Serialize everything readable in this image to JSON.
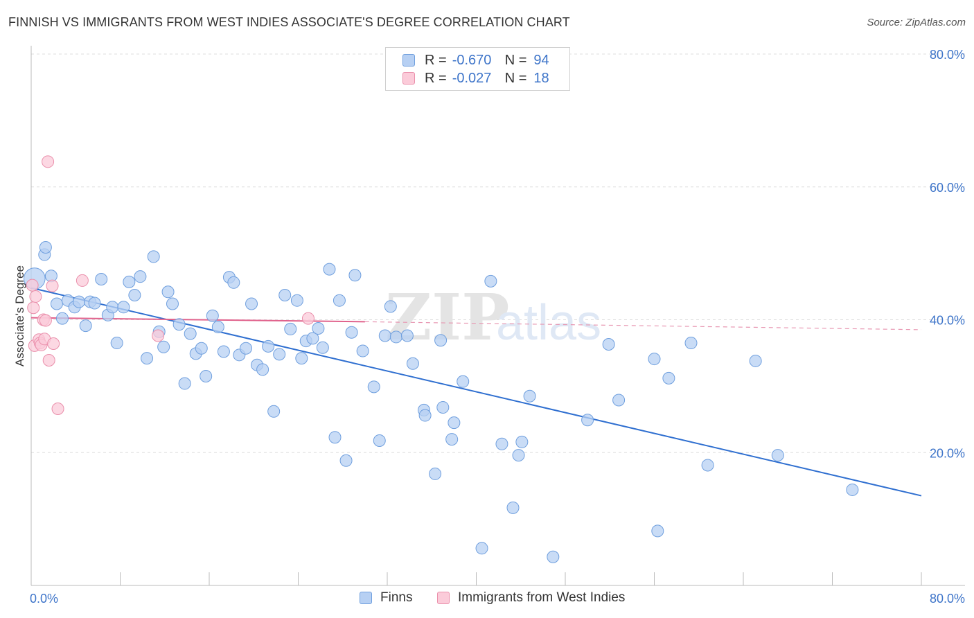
{
  "title": "FINNISH VS IMMIGRANTS FROM WEST INDIES ASSOCIATE'S DEGREE CORRELATION CHART",
  "source": "Source: ZipAtlas.com",
  "watermark": {
    "zip": "ZIP",
    "atlas": "atlas"
  },
  "legend_stats": [
    {
      "r_label": "R =",
      "r_value": "-0.670",
      "n_label": "N =",
      "n_value": "94",
      "color": "#6f9fde"
    },
    {
      "r_label": "R =",
      "r_value": "-0.027",
      "n_label": "N =",
      "n_value": "18",
      "color": "#ea8fab"
    }
  ],
  "chart_data": {
    "type": "scatter",
    "title": "FINNISH VS IMMIGRANTS FROM WEST INDIES ASSOCIATE'S DEGREE CORRELATION CHART",
    "xlabel": "",
    "ylabel": "Associate's Degree",
    "xlim": [
      0,
      80
    ],
    "ylim": [
      0,
      80
    ],
    "x_tick_labels": [
      "0.0%",
      "80.0%"
    ],
    "y_tick_labels": [
      "20.0%",
      "40.0%",
      "60.0%",
      "80.0%"
    ],
    "y_ticks": [
      20,
      40,
      60,
      80
    ],
    "grid": true,
    "legend_position": "bottom",
    "series": [
      {
        "name": "Finns",
        "color": "#6f9fde",
        "fill": "#b7d0f3",
        "trend": {
          "x": [
            0,
            80
          ],
          "y": [
            44.8,
            13.5
          ],
          "style": "solid"
        },
        "points": [
          [
            0.3,
            46.2,
            1.8
          ],
          [
            1.2,
            49.8,
            1.0
          ],
          [
            1.3,
            50.9,
            1.0
          ],
          [
            1.8,
            46.6,
            1.0
          ],
          [
            2.3,
            42.4,
            1.0
          ],
          [
            3.3,
            42.9,
            1.0
          ],
          [
            2.8,
            40.2,
            1.0
          ],
          [
            3.9,
            41.9,
            1.0
          ],
          [
            4.3,
            42.7,
            1.0
          ],
          [
            4.9,
            39.1,
            1.0
          ],
          [
            5.3,
            42.7,
            1.0
          ],
          [
            5.7,
            42.5,
            1.0
          ],
          [
            6.3,
            46.1,
            1.0
          ],
          [
            6.9,
            40.7,
            1.0
          ],
          [
            7.7,
            36.5,
            1.0
          ],
          [
            7.3,
            41.9,
            1.0
          ],
          [
            8.3,
            41.9,
            1.0
          ],
          [
            8.8,
            45.7,
            1.0
          ],
          [
            9.3,
            43.7,
            1.0
          ],
          [
            9.8,
            46.5,
            1.0
          ],
          [
            10.4,
            34.2,
            1.0
          ],
          [
            11.0,
            49.5,
            1.0
          ],
          [
            11.5,
            38.2,
            1.0
          ],
          [
            11.9,
            35.9,
            1.0
          ],
          [
            12.3,
            44.2,
            1.0
          ],
          [
            12.7,
            42.4,
            1.0
          ],
          [
            13.3,
            39.3,
            1.0
          ],
          [
            13.8,
            30.4,
            1.0
          ],
          [
            14.3,
            37.9,
            1.0
          ],
          [
            14.8,
            34.9,
            1.0
          ],
          [
            15.3,
            35.7,
            1.0
          ],
          [
            15.7,
            31.5,
            1.0
          ],
          [
            16.3,
            40.6,
            1.0
          ],
          [
            16.8,
            38.9,
            1.0
          ],
          [
            17.3,
            35.2,
            1.0
          ],
          [
            17.8,
            46.4,
            1.0
          ],
          [
            18.2,
            45.6,
            1.0
          ],
          [
            18.7,
            34.7,
            1.0
          ],
          [
            19.3,
            35.7,
            1.0
          ],
          [
            19.8,
            42.4,
            1.0
          ],
          [
            20.3,
            33.2,
            1.0
          ],
          [
            20.8,
            32.5,
            1.0
          ],
          [
            21.3,
            36.0,
            1.0
          ],
          [
            21.8,
            26.2,
            1.0
          ],
          [
            22.3,
            34.8,
            1.0
          ],
          [
            22.8,
            43.7,
            1.0
          ],
          [
            23.3,
            38.6,
            1.0
          ],
          [
            23.9,
            42.9,
            1.0
          ],
          [
            24.3,
            34.2,
            1.0
          ],
          [
            24.7,
            36.8,
            1.0
          ],
          [
            25.3,
            37.2,
            1.0
          ],
          [
            25.8,
            38.7,
            1.0
          ],
          [
            26.2,
            35.8,
            1.0
          ],
          [
            26.8,
            47.6,
            1.0
          ],
          [
            27.3,
            22.3,
            1.0
          ],
          [
            27.7,
            42.9,
            1.0
          ],
          [
            28.3,
            18.8,
            1.0
          ],
          [
            28.8,
            38.1,
            1.0
          ],
          [
            29.1,
            46.7,
            1.0
          ],
          [
            29.8,
            35.3,
            1.0
          ],
          [
            30.8,
            29.9,
            1.0
          ],
          [
            31.3,
            21.8,
            1.0
          ],
          [
            31.8,
            37.6,
            1.0
          ],
          [
            32.3,
            42.0,
            1.0
          ],
          [
            32.8,
            37.4,
            1.0
          ],
          [
            33.8,
            37.6,
            1.0
          ],
          [
            34.3,
            33.4,
            1.0
          ],
          [
            35.3,
            26.4,
            1.0
          ],
          [
            35.4,
            25.6,
            1.0
          ],
          [
            36.3,
            16.8,
            1.0
          ],
          [
            36.8,
            36.9,
            1.0
          ],
          [
            37.0,
            26.8,
            1.0
          ],
          [
            37.8,
            22.0,
            1.0
          ],
          [
            38.0,
            24.5,
            1.0
          ],
          [
            38.8,
            30.7,
            1.0
          ],
          [
            40.5,
            5.6,
            1.0
          ],
          [
            41.3,
            45.8,
            1.0
          ],
          [
            42.3,
            21.3,
            1.0
          ],
          [
            43.3,
            11.7,
            1.0
          ],
          [
            43.8,
            19.6,
            1.0
          ],
          [
            44.1,
            21.6,
            1.0
          ],
          [
            44.8,
            28.5,
            1.0
          ],
          [
            46.9,
            4.3,
            1.0
          ],
          [
            50.0,
            24.9,
            1.0
          ],
          [
            51.9,
            36.3,
            1.0
          ],
          [
            52.8,
            27.9,
            1.0
          ],
          [
            56.0,
            34.1,
            1.0
          ],
          [
            56.3,
            8.2,
            1.0
          ],
          [
            57.3,
            31.2,
            1.0
          ],
          [
            59.3,
            36.5,
            1.0
          ],
          [
            60.8,
            18.1,
            1.0
          ],
          [
            65.1,
            33.8,
            1.0
          ],
          [
            67.1,
            19.6,
            1.0
          ],
          [
            73.8,
            14.4,
            1.0
          ]
        ]
      },
      {
        "name": "Immigrants from West Indies",
        "color": "#ea8fab",
        "fill": "#fbcbd9",
        "trend": {
          "x": [
            0,
            30,
            80
          ],
          "y": [
            40.3,
            39.7,
            38.5
          ],
          "style": "solid-then-dashed"
        },
        "points": [
          [
            0.1,
            45.2,
            1.0
          ],
          [
            0.2,
            41.8,
            1.0
          ],
          [
            0.3,
            36.1,
            1.0
          ],
          [
            0.4,
            43.5,
            1.0
          ],
          [
            0.7,
            37.0,
            1.0
          ],
          [
            0.8,
            36.5,
            1.0
          ],
          [
            0.9,
            36.2,
            1.0
          ],
          [
            1.1,
            40.0,
            1.0
          ],
          [
            1.2,
            37.1,
            1.0
          ],
          [
            1.3,
            39.9,
            1.0
          ],
          [
            1.5,
            63.8,
            1.0
          ],
          [
            1.6,
            33.9,
            1.0
          ],
          [
            1.9,
            45.1,
            1.0
          ],
          [
            2.0,
            36.4,
            1.0
          ],
          [
            2.4,
            26.6,
            1.0
          ],
          [
            4.6,
            45.9,
            1.0
          ],
          [
            11.4,
            37.6,
            1.0
          ],
          [
            24.9,
            40.2,
            1.0
          ]
        ]
      }
    ]
  },
  "legend_bottom": [
    {
      "label": "Finns"
    },
    {
      "label": "Immigrants from West Indies"
    }
  ]
}
